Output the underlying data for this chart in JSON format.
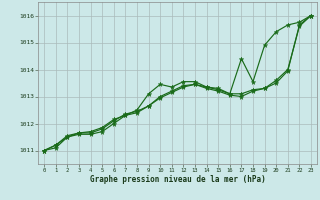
{
  "title": "Graphe pression niveau de la mer (hPa)",
  "x": [
    0,
    1,
    2,
    3,
    4,
    5,
    6,
    7,
    8,
    9,
    10,
    11,
    12,
    13,
    14,
    15,
    16,
    17,
    18,
    19,
    20,
    21,
    22,
    23
  ],
  "line1": [
    1011.0,
    1011.1,
    1011.5,
    1011.6,
    1011.6,
    1011.7,
    1012.0,
    1012.3,
    1012.5,
    1013.1,
    1013.45,
    1013.35,
    1013.55,
    1013.55,
    1013.35,
    1013.3,
    1013.1,
    1014.4,
    1013.55,
    1014.9,
    1015.4,
    1015.65,
    1015.75,
    1016.0
  ],
  "line2": [
    1011.0,
    1011.2,
    1011.5,
    1011.65,
    1011.65,
    1011.8,
    1012.1,
    1012.35,
    1012.45,
    1012.65,
    1013.0,
    1013.2,
    1013.4,
    1013.45,
    1013.35,
    1013.25,
    1013.1,
    1013.1,
    1013.25,
    1013.3,
    1013.6,
    1014.0,
    1015.6,
    1016.0
  ],
  "line3": [
    1011.0,
    1011.2,
    1011.55,
    1011.65,
    1011.7,
    1011.85,
    1012.15,
    1012.3,
    1012.4,
    1012.65,
    1012.95,
    1013.15,
    1013.35,
    1013.45,
    1013.3,
    1013.2,
    1013.05,
    1013.0,
    1013.2,
    1013.3,
    1013.5,
    1013.95,
    1015.65,
    1016.0
  ],
  "bg_color": "#cce8e8",
  "line_color": "#1a6b1a",
  "grid_color": "#aabbbb",
  "ylim": [
    1010.5,
    1016.5
  ],
  "yticks": [
    1011,
    1012,
    1013,
    1014,
    1015,
    1016
  ],
  "xticks": [
    0,
    1,
    2,
    3,
    4,
    5,
    6,
    7,
    8,
    9,
    10,
    11,
    12,
    13,
    14,
    15,
    16,
    17,
    18,
    19,
    20,
    21,
    22,
    23
  ]
}
